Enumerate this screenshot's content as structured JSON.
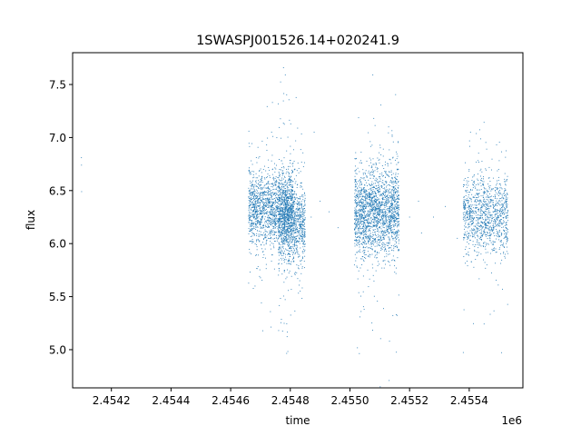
{
  "chart_data": {
    "type": "scatter",
    "title": "1SWASPJ001526.14+020241.9",
    "xlabel": "time",
    "ylabel": "flux",
    "x_offset_label": "1e6",
    "x_scale": 1000000,
    "xlim": [
      2454070,
      2454580
    ],
    "ylim": [
      4.64,
      7.8
    ],
    "x_ticks": [
      2454200,
      2454400,
      2454600,
      2454800,
      2455000,
      2455200,
      2455400
    ],
    "x_tick_labels": [
      "2.4542",
      "2.4544",
      "2.4546",
      "2.4548",
      "2.4550",
      "2.4552",
      "2.4554"
    ],
    "y_ticks": [
      5.0,
      5.5,
      6.0,
      6.5,
      7.0,
      7.5
    ],
    "y_tick_labels": [
      "5.0",
      "5.5",
      "6.0",
      "6.5",
      "7.0",
      "7.5"
    ],
    "grid": false,
    "marker_color": "#1f77b4",
    "series": [
      {
        "points": [
          [
            2454099.5,
            6.81
          ],
          [
            2454099.8,
            6.74
          ],
          [
            2454100.2,
            6.49
          ],
          [
            2454690.0,
            6.62
          ],
          [
            2454720.0,
            6.35
          ],
          [
            2454750.0,
            6.15
          ],
          [
            2454780.0,
            6.3
          ],
          [
            2454810.0,
            6.2
          ],
          [
            2454840.0,
            6.05
          ],
          [
            2454870.0,
            6.25
          ],
          [
            2454880.0,
            7.05
          ],
          [
            2454900.0,
            6.4
          ],
          [
            2454930.0,
            6.3
          ],
          [
            2454960.0,
            6.15
          ],
          [
            2455020.0,
            6.45
          ],
          [
            2455040.0,
            5.8
          ],
          [
            2455060.0,
            6.3
          ],
          [
            2455080.0,
            6.05
          ],
          [
            2455100.0,
            6.2
          ],
          [
            2455120.0,
            6.5
          ],
          [
            2455140.0,
            6.1
          ],
          [
            2455160.0,
            6.35
          ],
          [
            2455200.0,
            6.25
          ],
          [
            2455230.0,
            6.4
          ],
          [
            2455240.0,
            6.1
          ],
          [
            2455280.0,
            6.25
          ],
          [
            2455320.0,
            6.35
          ],
          [
            2455360.0,
            6.05
          ],
          [
            2455400.0,
            6.3
          ],
          [
            2455440.0,
            6.45
          ],
          [
            2455480.0,
            6.15
          ],
          [
            2455520.0,
            6.5
          ]
        ],
        "clusters": [
          {
            "x_range": [
              2454660,
              2454810
            ],
            "y_center": 6.33,
            "y_spread": 0.18,
            "count": 1600
          },
          {
            "x_range": [
              2454760,
              2454850
            ],
            "y_center": 6.2,
            "y_spread": 0.2,
            "count": 1100
          },
          {
            "x_range": [
              2455015,
              2455165
            ],
            "y_center": 6.3,
            "y_spread": 0.2,
            "count": 2000
          },
          {
            "x_range": [
              2455380,
              2455530
            ],
            "y_center": 6.28,
            "y_spread": 0.18,
            "count": 1100
          }
        ]
      }
    ]
  }
}
